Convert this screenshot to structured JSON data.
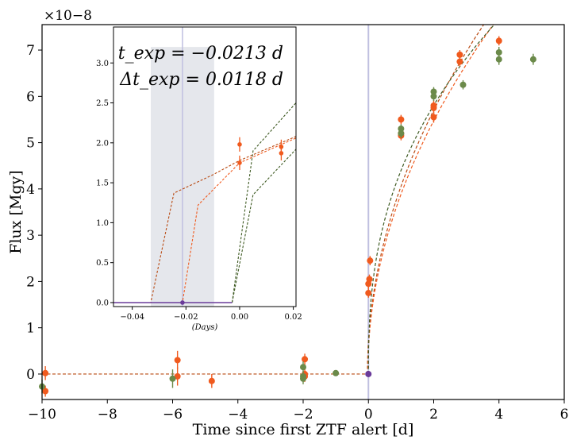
{
  "chart_data": [
    {
      "type": "scatter",
      "panel": "main",
      "xlabel": "Time since first ZTF alert [d]",
      "ylabel": "Flux [Mgy]",
      "y_multiplier_label": "×10−8",
      "xlim": [
        -10,
        6
      ],
      "ylim": [
        -0.55,
        7.55
      ],
      "xticks": [
        -10,
        -8,
        -6,
        -4,
        -2,
        0,
        2,
        4,
        6
      ],
      "xtick_labels": [
        "−10",
        "−8",
        "−6",
        "−4",
        "−2",
        "0",
        "2",
        "4",
        "6"
      ],
      "yticks": [
        0,
        1,
        2,
        3,
        4,
        5,
        6,
        7
      ],
      "ytick_labels": [
        "0",
        "1",
        "2",
        "3",
        "4",
        "5",
        "6",
        "7"
      ],
      "grid": false,
      "colors": {
        "orange": "#f05a1e",
        "green": "#6b8a4a",
        "purple": "#6a3b9a",
        "vline": "#c0c0e0",
        "darkorange": "#b94a12",
        "darkgreen": "#3e5a22"
      },
      "series": [
        {
          "band": "orange",
          "points": [
            {
              "x": -9.9,
              "y": 0.02,
              "err": 0.15
            },
            {
              "x": -9.9,
              "y": -0.37,
              "err": 0.12
            },
            {
              "x": -5.85,
              "y": 0.3,
              "err": 0.2
            },
            {
              "x": -5.85,
              "y": -0.05,
              "err": 0.2
            },
            {
              "x": -4.8,
              "y": -0.15,
              "err": 0.15
            },
            {
              "x": -1.95,
              "y": 0.32,
              "err": 0.12
            },
            {
              "x": -1.95,
              "y": 0.0,
              "err": 0.12
            },
            {
              "x": -1.95,
              "y": -0.05,
              "err": 0.12
            },
            {
              "x": 0.0,
              "y": 1.75,
              "err": 0.1
            },
            {
              "x": 0.0,
              "y": 1.95,
              "err": 0.1
            },
            {
              "x": 0.03,
              "y": 2.05,
              "err": 0.1
            },
            {
              "x": 0.05,
              "y": 2.45,
              "err": 0.1
            },
            {
              "x": 1.0,
              "y": 5.5,
              "err": 0.1
            },
            {
              "x": 1.0,
              "y": 5.2,
              "err": 0.1
            },
            {
              "x": 1.0,
              "y": 5.15,
              "err": 0.1
            },
            {
              "x": 2.0,
              "y": 5.8,
              "err": 0.12
            },
            {
              "x": 2.0,
              "y": 5.75,
              "err": 0.12
            },
            {
              "x": 2.0,
              "y": 5.55,
              "err": 0.12
            },
            {
              "x": 2.8,
              "y": 6.75,
              "err": 0.1
            },
            {
              "x": 2.8,
              "y": 6.9,
              "err": 0.1
            },
            {
              "x": 4.0,
              "y": 7.2,
              "err": 0.1
            }
          ]
        },
        {
          "band": "green",
          "points": [
            {
              "x": -10.0,
              "y": -0.27,
              "err": 0.15
            },
            {
              "x": -6.0,
              "y": -0.1,
              "err": 0.2
            },
            {
              "x": -2.0,
              "y": 0.15,
              "err": 0.12
            },
            {
              "x": -2.0,
              "y": -0.05,
              "err": 0.12
            },
            {
              "x": -2.0,
              "y": -0.1,
              "err": 0.12
            },
            {
              "x": -1.0,
              "y": 0.02,
              "err": 0.06
            },
            {
              "x": 1.0,
              "y": 5.3,
              "err": 0.1
            },
            {
              "x": 1.0,
              "y": 5.2,
              "err": 0.1
            },
            {
              "x": 2.0,
              "y": 6.1,
              "err": 0.1
            },
            {
              "x": 2.0,
              "y": 6.0,
              "err": 0.1
            },
            {
              "x": 2.9,
              "y": 6.25,
              "err": 0.1
            },
            {
              "x": 4.0,
              "y": 6.8,
              "err": 0.12
            },
            {
              "x": 4.0,
              "y": 6.95,
              "err": 0.12
            },
            {
              "x": 5.05,
              "y": 6.8,
              "err": 0.12
            }
          ]
        },
        {
          "band": "purple",
          "points": [
            {
              "x": 0.0,
              "y": 0.0,
              "err": 0.0
            }
          ]
        }
      ],
      "models": [
        {
          "color": "darkorange",
          "t0": -0.03,
          "A": 4.0,
          "p": 0.5
        },
        {
          "color": "orange",
          "t0": -0.02,
          "A": 3.85,
          "p": 0.5
        },
        {
          "color": "darkgreen",
          "t0": 0.0,
          "A": 4.4,
          "p": 0.4
        }
      ],
      "vline_x": 0.0
    },
    {
      "type": "scatter",
      "panel": "inset",
      "xlabel": "(Days)",
      "xlim": [
        -0.047,
        0.021
      ],
      "ylim": [
        -0.05,
        3.45
      ],
      "xticks": [
        -0.04,
        -0.02,
        0.0,
        0.02
      ],
      "xtick_labels": [
        "−0.04",
        "−0.02",
        "0.00",
        "0.02"
      ],
      "yticks": [
        0.0,
        0.5,
        1.0,
        1.5,
        2.0,
        2.5,
        3.0
      ],
      "ytick_labels": [
        "0.0",
        "0.5",
        "1.0",
        "1.5",
        "2.0",
        "2.5",
        "3.0"
      ],
      "shaded_band": [
        -0.0331,
        -0.0095
      ],
      "vline_x": -0.0213,
      "annotations": [
        "t_exp = −0.0213 d",
        "Δt_exp = 0.0118 d"
      ],
      "points": [
        {
          "x": 0.0,
          "y": 1.98,
          "err": 0.09,
          "band": "orange"
        },
        {
          "x": 0.0,
          "y": 1.75,
          "err": 0.09,
          "band": "orange"
        },
        {
          "x": 0.0155,
          "y": 1.95,
          "err": 0.09,
          "band": "orange"
        },
        {
          "x": 0.0155,
          "y": 1.87,
          "err": 0.09,
          "band": "orange"
        },
        {
          "x": -0.0213,
          "y": 0.0,
          "err": 0.0,
          "band": "purple"
        }
      ],
      "models": [
        {
          "color": "darkorange",
          "x": [
            -0.047,
            -0.0331,
            -0.0245,
            -0.01,
            0.0,
            0.021
          ],
          "y": [
            0.0,
            0.0,
            1.37,
            1.6,
            1.78,
            2.08
          ]
        },
        {
          "color": "orange",
          "x": [
            -0.047,
            -0.0213,
            -0.0155,
            -0.005,
            0.0,
            0.021
          ],
          "y": [
            0.0,
            0.0,
            1.22,
            1.58,
            1.75,
            2.06
          ]
        },
        {
          "color": "darkgreen",
          "x": [
            -0.047,
            -0.0028,
            0.005,
            0.021
          ],
          "y": [
            0.0,
            0.0,
            1.9,
            2.5
          ]
        },
        {
          "color": "darkgreen",
          "x": [
            -0.0028,
            0.005,
            0.021
          ],
          "y": [
            0.0,
            1.35,
            1.92
          ]
        }
      ]
    }
  ]
}
